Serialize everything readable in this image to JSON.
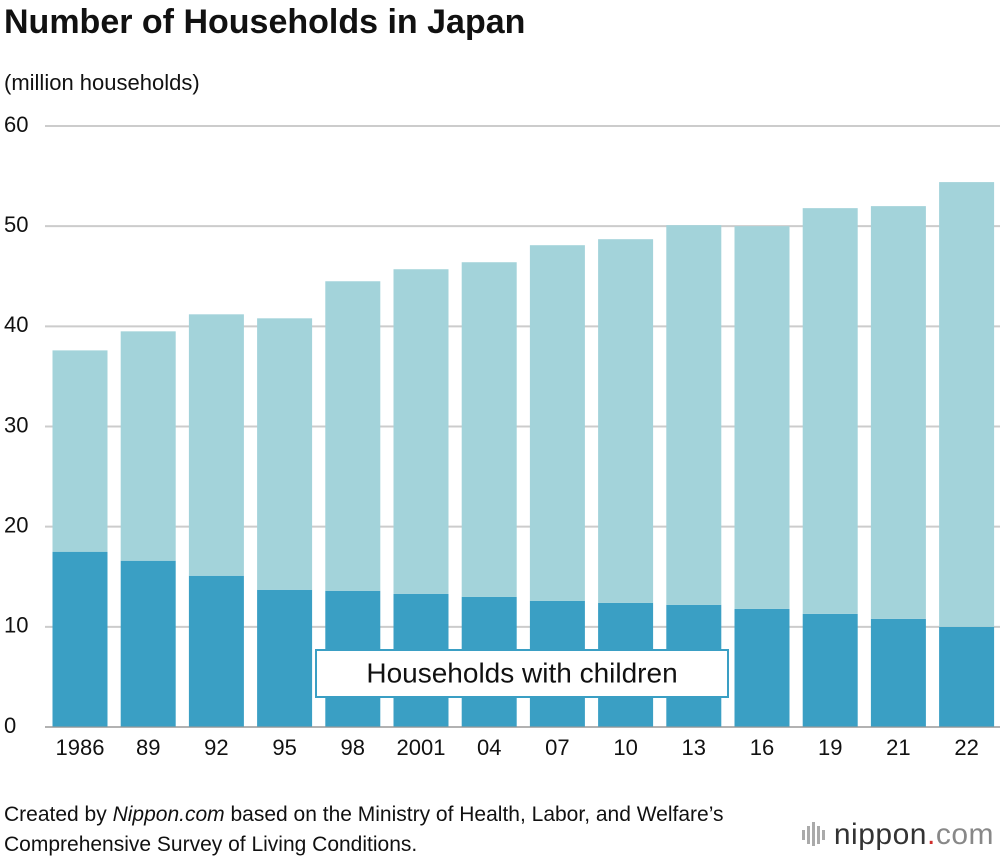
{
  "chart_data": {
    "type": "stacked-bar",
    "title": "Number of Households in Japan",
    "subtitle": "(million households)",
    "categories": [
      "1986",
      "89",
      "92",
      "95",
      "98",
      "2001",
      "04",
      "07",
      "10",
      "13",
      "16",
      "19",
      "21",
      "22"
    ],
    "series": [
      {
        "name": "Households with children",
        "color": "#3a9fc4",
        "values": [
          17.5,
          16.6,
          15.1,
          13.7,
          13.6,
          13.3,
          13.0,
          12.6,
          12.4,
          12.2,
          11.8,
          11.3,
          10.8,
          10.0
        ]
      },
      {
        "color": "#a3d3da",
        "values": [
          20.1,
          22.9,
          26.1,
          27.1,
          30.9,
          32.4,
          33.4,
          35.5,
          36.3,
          37.9,
          38.2,
          40.5,
          41.2,
          44.4
        ]
      }
    ],
    "ylim": [
      0,
      60
    ],
    "yticks": [
      0,
      10,
      20,
      30,
      40,
      50,
      60
    ],
    "grid": true,
    "source": [
      "Created by",
      "Nippon.com",
      "based on the Ministry of Health, Labor, and Welfare’s Comprehensive Survey of Living Conditions."
    ]
  },
  "logo": [
    "nippon",
    ".",
    "com"
  ]
}
